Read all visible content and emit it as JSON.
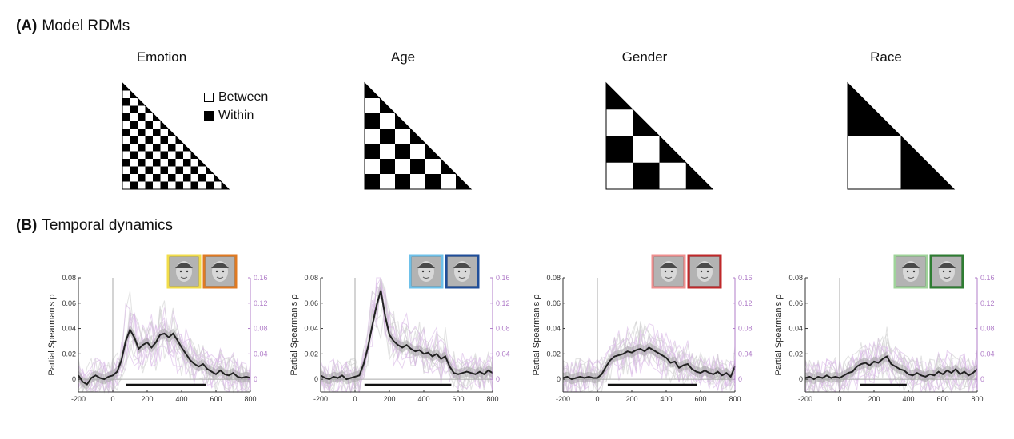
{
  "panel_a": {
    "letter": "(A)",
    "title": "Model RDMs"
  },
  "panel_b": {
    "letter": "(B)",
    "title": "Temporal dynamics"
  },
  "legend": {
    "between": "Between",
    "within": "Within"
  },
  "rdms": [
    {
      "title": "Emotion",
      "blocks": 14
    },
    {
      "title": "Age",
      "blocks": 7
    },
    {
      "title": "Gender",
      "blocks": 4
    },
    {
      "title": "Race",
      "blocks": 2
    }
  ],
  "icon_colors": [
    [
      "#f2dd4a",
      "#e07a22"
    ],
    [
      "#6ec1ea",
      "#1f4e9a"
    ],
    [
      "#ef8f8f",
      "#c0282a"
    ],
    [
      "#9fd39a",
      "#2e7d32"
    ]
  ],
  "chart_data": [
    {
      "type": "line",
      "ylabel": "Partial Spearman's ρ",
      "xlim": [
        -200,
        800
      ],
      "ylim": [
        -0.01,
        0.08
      ],
      "ylim_right": [
        -0.02,
        0.16
      ],
      "xticks": [
        -200,
        0,
        200,
        400,
        600,
        800
      ],
      "yticks": [
        "0",
        "0.02",
        "0.04",
        "0.06",
        "0.08"
      ],
      "yticks_right": [
        "0",
        "0.04",
        "0.08",
        "0.12",
        "0.16"
      ],
      "x": [
        -200,
        -175,
        -150,
        -125,
        -100,
        -75,
        -50,
        -25,
        0,
        25,
        50,
        75,
        100,
        125,
        150,
        175,
        200,
        225,
        250,
        275,
        300,
        325,
        350,
        375,
        400,
        425,
        450,
        475,
        500,
        525,
        550,
        575,
        600,
        625,
        650,
        675,
        700,
        725,
        750,
        775,
        800
      ],
      "values": [
        0.003,
        -0.002,
        -0.004,
        0.001,
        0.003,
        0.001,
        0,
        0.002,
        0.003,
        0.006,
        0.015,
        0.03,
        0.039,
        0.033,
        0.024,
        0.027,
        0.029,
        0.025,
        0.029,
        0.035,
        0.036,
        0.033,
        0.036,
        0.031,
        0.025,
        0.02,
        0.015,
        0.012,
        0.01,
        0.012,
        0.008,
        0.006,
        0.004,
        0.007,
        0.004,
        0.003,
        0.005,
        0.002,
        0.001,
        0.002,
        0.001
      ],
      "significance": [
        75,
        540
      ]
    },
    {
      "type": "line",
      "ylabel": "Partial Spearman's ρ",
      "xlim": [
        -200,
        800
      ],
      "ylim": [
        -0.01,
        0.08
      ],
      "ylim_right": [
        -0.02,
        0.16
      ],
      "xticks": [
        -200,
        0,
        200,
        400,
        600,
        800
      ],
      "yticks": [
        "0",
        "0.02",
        "0.04",
        "0.06",
        "0.08"
      ],
      "yticks_right": [
        "0",
        "0.04",
        "0.08",
        "0.12",
        "0.16"
      ],
      "x": [
        -200,
        -175,
        -150,
        -125,
        -100,
        -75,
        -50,
        -25,
        0,
        25,
        50,
        75,
        100,
        125,
        150,
        175,
        200,
        225,
        250,
        275,
        300,
        325,
        350,
        375,
        400,
        425,
        450,
        475,
        500,
        525,
        550,
        575,
        600,
        625,
        650,
        675,
        700,
        725,
        750,
        775,
        800
      ],
      "values": [
        0.003,
        0.001,
        0,
        0.002,
        0.001,
        0.003,
        0,
        0.001,
        0.002,
        0.003,
        0.012,
        0.025,
        0.042,
        0.058,
        0.07,
        0.05,
        0.035,
        0.03,
        0.027,
        0.025,
        0.027,
        0.024,
        0.022,
        0.023,
        0.02,
        0.021,
        0.018,
        0.02,
        0.016,
        0.018,
        0.01,
        0.005,
        0.004,
        0.005,
        0.006,
        0.005,
        0.004,
        0.006,
        0.004,
        0.007,
        0.005
      ],
      "significance": [
        55,
        560
      ]
    },
    {
      "type": "line",
      "ylabel": "Partial Spearman's ρ",
      "xlim": [
        -200,
        800
      ],
      "ylim": [
        -0.01,
        0.08
      ],
      "ylim_right": [
        -0.02,
        0.16
      ],
      "xticks": [
        -200,
        0,
        200,
        400,
        600,
        800
      ],
      "yticks": [
        "0",
        "0.02",
        "0.04",
        "0.06",
        "0.08"
      ],
      "yticks_right": [
        "0",
        "0.04",
        "0.08",
        "0.12",
        "0.16"
      ],
      "x": [
        -200,
        -175,
        -150,
        -125,
        -100,
        -75,
        -50,
        -25,
        0,
        25,
        50,
        75,
        100,
        125,
        150,
        175,
        200,
        225,
        250,
        275,
        300,
        325,
        350,
        375,
        400,
        425,
        450,
        475,
        500,
        525,
        550,
        575,
        600,
        625,
        650,
        675,
        700,
        725,
        750,
        775,
        800
      ],
      "values": [
        0.001,
        0.002,
        0,
        0.001,
        0.002,
        0.001,
        0.002,
        0.001,
        0.001,
        0.004,
        0.01,
        0.015,
        0.018,
        0.019,
        0.02,
        0.022,
        0.021,
        0.023,
        0.024,
        0.022,
        0.025,
        0.023,
        0.021,
        0.019,
        0.017,
        0.013,
        0.014,
        0.009,
        0.011,
        0.012,
        0.008,
        0.006,
        0.005,
        0.007,
        0.005,
        0.004,
        0.006,
        0.003,
        0.005,
        0.002,
        0.01
      ],
      "significance": [
        60,
        580
      ]
    },
    {
      "type": "line",
      "ylabel": "Partial Spearman's ρ",
      "xlim": [
        -200,
        800
      ],
      "ylim": [
        -0.01,
        0.08
      ],
      "ylim_right": [
        -0.02,
        0.16
      ],
      "xticks": [
        -200,
        0,
        200,
        400,
        600,
        800
      ],
      "yticks": [
        "0",
        "0.02",
        "0.04",
        "0.06",
        "0.08"
      ],
      "yticks_right": [
        "0",
        "0.04",
        "0.08",
        "0.12",
        "0.16"
      ],
      "x": [
        -200,
        -175,
        -150,
        -125,
        -100,
        -75,
        -50,
        -25,
        0,
        25,
        50,
        75,
        100,
        125,
        150,
        175,
        200,
        225,
        250,
        275,
        300,
        325,
        350,
        375,
        400,
        425,
        450,
        475,
        500,
        525,
        550,
        575,
        600,
        625,
        650,
        675,
        700,
        725,
        750,
        775,
        800
      ],
      "values": [
        0.001,
        0.002,
        0,
        0.002,
        0.001,
        0.003,
        0.001,
        0.002,
        0.001,
        0.003,
        0.005,
        0.006,
        0.01,
        0.012,
        0.013,
        0.011,
        0.014,
        0.013,
        0.016,
        0.018,
        0.012,
        0.01,
        0.008,
        0.007,
        0.004,
        0.003,
        0.005,
        0.003,
        0.002,
        0.004,
        0.003,
        0.006,
        0.004,
        0.007,
        0.005,
        0.008,
        0.004,
        0.006,
        0.003,
        0.005,
        0.008
      ],
      "significance": [
        120,
        390
      ]
    }
  ]
}
